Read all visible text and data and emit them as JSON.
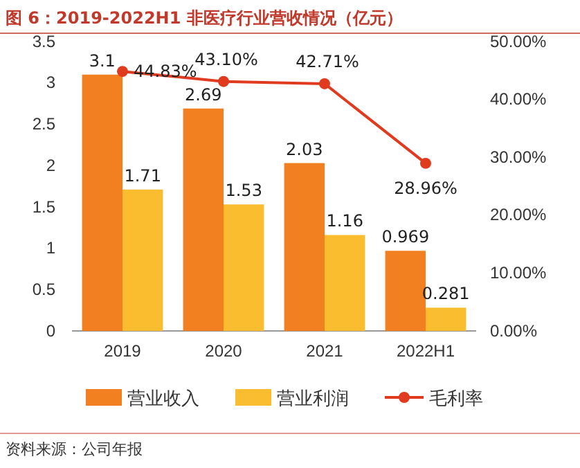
{
  "chart_data": {
    "type": "bar",
    "title": "图 6：2019-2022H1 非医疗行业营收情况（亿元）",
    "categories": [
      "2019",
      "2020",
      "2021",
      "2022H1"
    ],
    "series": [
      {
        "name": "营业收入",
        "color": "#f28020",
        "values": [
          3.1,
          2.69,
          2.03,
          0.969
        ],
        "value_labels": [
          "3.1",
          "2.69",
          "2.03",
          "0.969"
        ]
      },
      {
        "name": "营业利润",
        "color": "#fbbd30",
        "values": [
          1.71,
          1.53,
          1.16,
          0.281
        ],
        "value_labels": [
          "1.71",
          "1.53",
          "1.16",
          "0.281"
        ]
      },
      {
        "name": "毛利率",
        "type": "line",
        "axis": "y2",
        "color": "#e03a1f",
        "marker": "circle",
        "values": [
          44.83,
          43.1,
          42.71,
          28.96
        ],
        "value_labels": [
          "44.83%",
          "43.10%",
          "42.71%",
          "28.96%"
        ]
      }
    ],
    "ylim": [
      0,
      3.5
    ],
    "yticks": [
      0,
      0.5,
      1,
      1.5,
      2,
      2.5,
      3,
      3.5
    ],
    "y2lim": [
      0,
      50
    ],
    "y2ticks": [
      {
        "value": 0,
        "label": "0.00%"
      },
      {
        "value": 10,
        "label": "10.00%"
      },
      {
        "value": 20,
        "label": "20.00%"
      },
      {
        "value": 30,
        "label": "30.00%"
      },
      {
        "value": 40,
        "label": "40.00%"
      },
      {
        "value": 50,
        "label": "50.00%"
      }
    ],
    "legend": "bottom",
    "grid": false,
    "annotations": [
      "资料来源：公司年报"
    ]
  }
}
